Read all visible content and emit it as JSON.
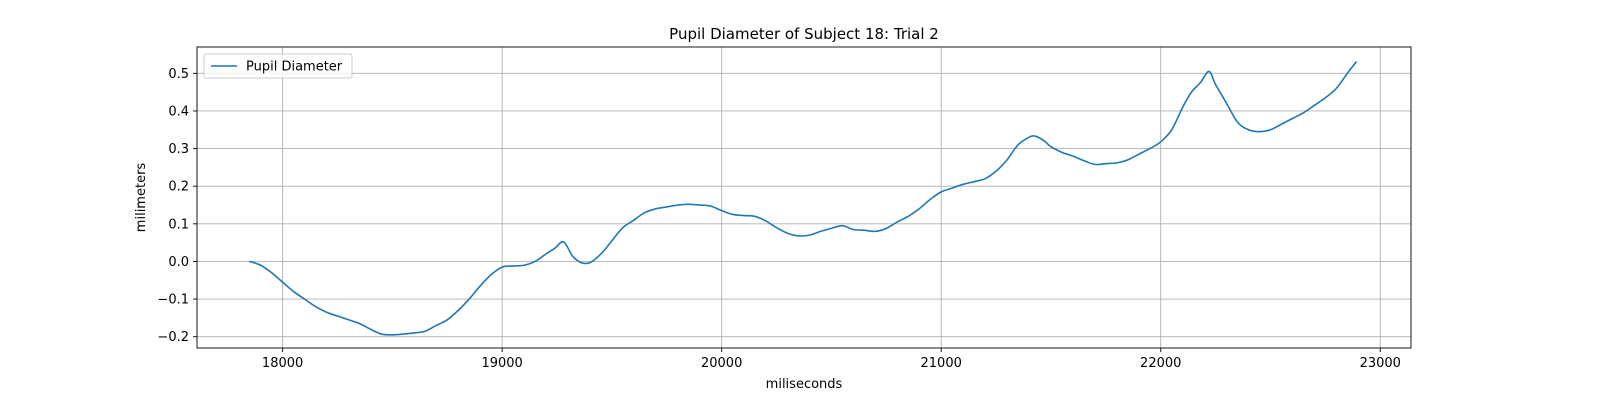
{
  "chart_data": {
    "type": "line",
    "title": "Pupil Diameter of Subject 18: Trial 2",
    "xlabel": "miliseconds",
    "ylabel": "milimeters",
    "xlim": [
      17610,
      23140
    ],
    "ylim": [
      -0.23,
      0.57
    ],
    "xticks": [
      18000,
      19000,
      20000,
      21000,
      22000,
      23000
    ],
    "yticks": [
      -0.2,
      -0.1,
      0.0,
      0.1,
      0.2,
      0.3,
      0.4,
      0.5
    ],
    "ytick_labels": [
      "−0.2",
      "−0.1",
      "0.0",
      "0.1",
      "0.2",
      "0.3",
      "0.4",
      "0.5"
    ],
    "grid": true,
    "legend_position": "top-left",
    "series": [
      {
        "name": "Pupil Diameter",
        "color": "#1f77b4",
        "x": [
          17850,
          17900,
          17950,
          18000,
          18050,
          18100,
          18150,
          18200,
          18250,
          18300,
          18350,
          18400,
          18450,
          18500,
          18550,
          18600,
          18650,
          18700,
          18750,
          18800,
          18850,
          18900,
          18950,
          19000,
          19050,
          19100,
          19150,
          19200,
          19240,
          19280,
          19320,
          19360,
          19400,
          19450,
          19500,
          19550,
          19600,
          19650,
          19700,
          19750,
          19800,
          19850,
          19900,
          19950,
          20000,
          20050,
          20100,
          20150,
          20200,
          20250,
          20300,
          20350,
          20400,
          20450,
          20500,
          20550,
          20600,
          20650,
          20700,
          20750,
          20800,
          20850,
          20900,
          20950,
          21000,
          21050,
          21100,
          21150,
          21200,
          21250,
          21300,
          21350,
          21400,
          21430,
          21470,
          21500,
          21550,
          21600,
          21650,
          21700,
          21750,
          21800,
          21850,
          21900,
          21950,
          22000,
          22050,
          22100,
          22140,
          22180,
          22220,
          22250,
          22300,
          22350,
          22400,
          22450,
          22500,
          22550,
          22600,
          22650,
          22700,
          22750,
          22800,
          22850,
          22890
        ],
        "y": [
          0.0,
          -0.01,
          -0.03,
          -0.055,
          -0.08,
          -0.1,
          -0.12,
          -0.135,
          -0.145,
          -0.155,
          -0.165,
          -0.18,
          -0.193,
          -0.195,
          -0.193,
          -0.19,
          -0.185,
          -0.17,
          -0.155,
          -0.13,
          -0.1,
          -0.065,
          -0.035,
          -0.015,
          -0.012,
          -0.01,
          0.0,
          0.02,
          0.035,
          0.052,
          0.015,
          -0.003,
          -0.003,
          0.02,
          0.055,
          0.09,
          0.11,
          0.13,
          0.14,
          0.145,
          0.15,
          0.152,
          0.15,
          0.147,
          0.135,
          0.125,
          0.122,
          0.12,
          0.108,
          0.09,
          0.075,
          0.068,
          0.07,
          0.08,
          0.088,
          0.095,
          0.085,
          0.083,
          0.08,
          0.088,
          0.105,
          0.12,
          0.14,
          0.165,
          0.185,
          0.195,
          0.205,
          0.212,
          0.22,
          0.24,
          0.27,
          0.31,
          0.33,
          0.333,
          0.32,
          0.305,
          0.29,
          0.28,
          0.268,
          0.258,
          0.26,
          0.262,
          0.27,
          0.285,
          0.3,
          0.318,
          0.35,
          0.41,
          0.45,
          0.475,
          0.505,
          0.47,
          0.42,
          0.37,
          0.35,
          0.345,
          0.35,
          0.365,
          0.38,
          0.395,
          0.415,
          0.435,
          0.46,
          0.5,
          0.53
        ]
      }
    ]
  }
}
